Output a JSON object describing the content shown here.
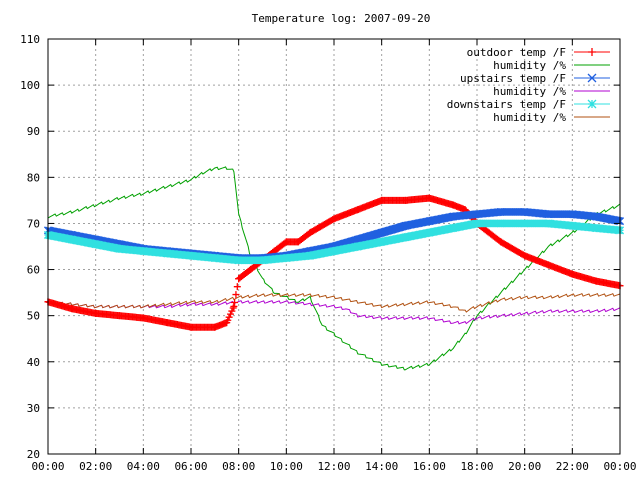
{
  "chart_data": {
    "type": "line",
    "title": "Temperature log: 2007-09-20",
    "xlabel": "",
    "ylabel": "",
    "x_ticks": [
      "00:00",
      "02:00",
      "04:00",
      "06:00",
      "08:00",
      "10:00",
      "12:00",
      "14:00",
      "16:00",
      "18:00",
      "20:00",
      "22:00",
      "00:00"
    ],
    "xlim": [
      0,
      24
    ],
    "ylim": [
      20,
      110
    ],
    "y_ticks": [
      20,
      30,
      40,
      50,
      60,
      70,
      80,
      90,
      100,
      110
    ],
    "grid": true,
    "legend_position": "top-right",
    "series": [
      {
        "name": "outdoor temp /F",
        "color": "#ff0000",
        "marker": "plus",
        "style": "markers",
        "x": [
          0,
          1,
          2,
          3,
          4,
          5,
          6,
          7,
          7.5,
          7.8,
          8,
          8.5,
          9,
          9.5,
          10,
          10.5,
          11,
          12,
          13,
          14,
          15,
          16,
          17,
          17.5,
          18,
          19,
          20,
          21,
          22,
          23,
          24
        ],
        "y": [
          53,
          51.5,
          50.5,
          50,
          49.5,
          48.5,
          47.5,
          47.5,
          48.5,
          52,
          58,
          60,
          62,
          64,
          66,
          66,
          68,
          71,
          73,
          75,
          75,
          75.5,
          74,
          73,
          70,
          66,
          63,
          61,
          59,
          57.5,
          56.5
        ]
      },
      {
        "name": "humidity /%",
        "color": "#00a000",
        "marker": "none",
        "style": "line",
        "x": [
          0,
          1,
          2,
          3,
          4,
          5,
          6,
          6.5,
          7,
          7.5,
          7.8,
          8,
          8.5,
          9,
          9.5,
          10,
          10.5,
          11,
          11.5,
          12,
          13,
          14,
          15,
          16,
          17,
          17.5,
          18,
          19,
          20,
          21,
          22,
          23,
          24
        ],
        "y": [
          71.5,
          72.5,
          74,
          75.5,
          76.5,
          78,
          79.5,
          81,
          82,
          82,
          81.5,
          72,
          63,
          58,
          55,
          54,
          53,
          54,
          48,
          46,
          42,
          39.5,
          38.5,
          39.5,
          43,
          46,
          50,
          55,
          60,
          65,
          68,
          72,
          74
        ]
      },
      {
        "name": "upstairs temp /F",
        "color": "#2060e0",
        "marker": "x",
        "style": "markers",
        "x": [
          0,
          1,
          2,
          3,
          4,
          5,
          6,
          7,
          8,
          9,
          10,
          11,
          12,
          13,
          14,
          15,
          16,
          17,
          18,
          19,
          20,
          21,
          22,
          23,
          24
        ],
        "y": [
          68.5,
          67.5,
          66.5,
          65.5,
          64.5,
          64,
          63.5,
          63,
          62.5,
          62.5,
          63,
          64,
          65,
          66.5,
          68,
          69.5,
          70.5,
          71.5,
          72,
          72.5,
          72.5,
          72,
          72,
          71.5,
          70.5
        ]
      },
      {
        "name": "humidity /%",
        "color": "#b000d0",
        "marker": "none",
        "style": "line",
        "x": [
          0,
          1,
          2,
          3,
          4,
          5,
          6,
          7,
          8,
          9,
          10,
          11,
          12,
          12.5,
          13,
          14,
          15,
          16,
          17,
          17.5,
          18,
          19,
          20,
          21,
          22,
          23,
          24
        ],
        "y": [
          53,
          52.5,
          52,
          52,
          52,
          52,
          52.5,
          52.5,
          53,
          53,
          53,
          52.5,
          52,
          51.5,
          50,
          49.5,
          49.5,
          49.5,
          48.5,
          48.5,
          49.5,
          50,
          50.5,
          51,
          51,
          51,
          51.5
        ]
      },
      {
        "name": "downstairs temp /F",
        "color": "#30e0e0",
        "marker": "star",
        "style": "markers",
        "x": [
          0,
          1,
          2,
          3,
          4,
          5,
          6,
          7,
          8,
          9,
          10,
          11,
          12,
          13,
          14,
          15,
          16,
          17,
          18,
          19,
          20,
          21,
          22,
          23,
          24
        ],
        "y": [
          67.5,
          66.5,
          65.5,
          64.5,
          64,
          63.5,
          63,
          62.5,
          62,
          62,
          62.5,
          63,
          64,
          65,
          66,
          67,
          68,
          69,
          70,
          70,
          70,
          70,
          69.5,
          69,
          68.5
        ]
      },
      {
        "name": "humidity /%",
        "color": "#b05010",
        "marker": "none",
        "style": "line",
        "x": [
          0,
          1,
          2,
          3,
          4,
          5,
          6,
          7,
          8,
          9,
          10,
          11,
          12,
          13,
          14,
          15,
          16,
          17,
          17.5,
          18,
          19,
          20,
          21,
          22,
          23,
          24
        ],
        "y": [
          53,
          52.5,
          52,
          52,
          52,
          52.5,
          53,
          53,
          54,
          54.5,
          54.5,
          54.5,
          54,
          53,
          52,
          52.5,
          53,
          52,
          51,
          52,
          53.5,
          54,
          54,
          54.5,
          54.5,
          54.5
        ]
      }
    ]
  }
}
